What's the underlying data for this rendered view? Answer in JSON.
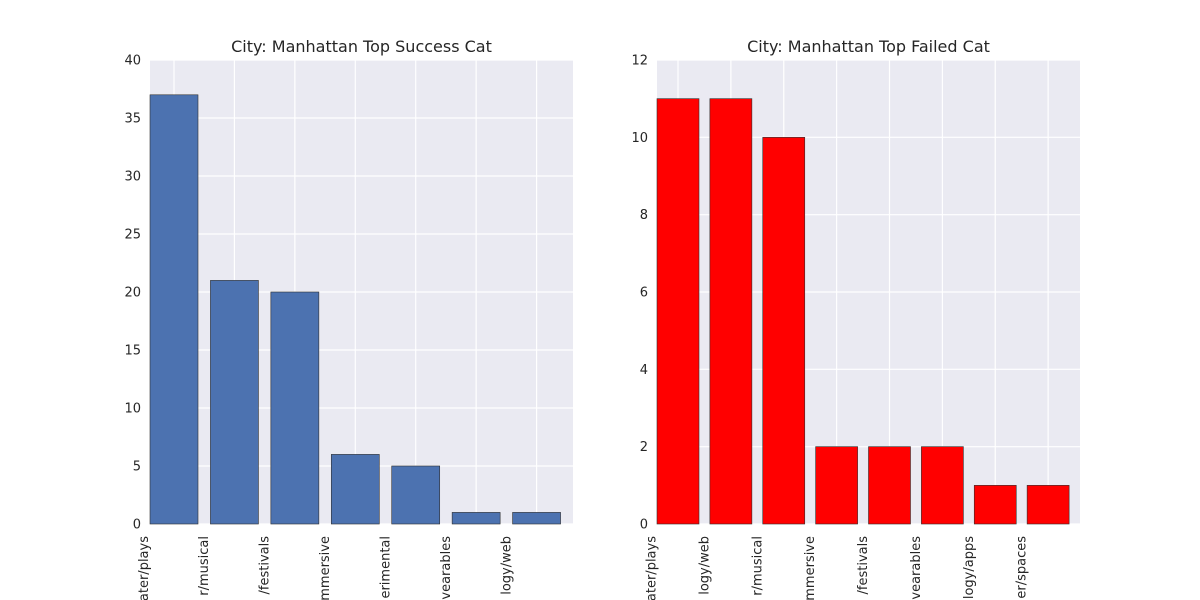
{
  "chart_data": [
    {
      "type": "bar",
      "title": "City: Manhattan Top Success Cat",
      "xlabel": "",
      "ylabel": "",
      "ylim": [
        0,
        40
      ],
      "yticks": [
        0,
        5,
        10,
        15,
        20,
        25,
        30,
        35,
        40
      ],
      "grid": true,
      "bar_color": "#4c72b0",
      "tick_labels": [
        "ater/plays",
        "r/musical",
        "/festivals",
        "mmersive",
        "erimental",
        "vearables",
        "logy/web"
      ],
      "values": [
        37,
        21,
        20,
        6,
        5,
        1,
        1
      ]
    },
    {
      "type": "bar",
      "title": "City: Manhattan Top Failed Cat",
      "xlabel": "",
      "ylabel": "",
      "ylim": [
        0,
        12
      ],
      "yticks": [
        0,
        2,
        4,
        6,
        8,
        10,
        12
      ],
      "grid": true,
      "bar_color": "#ff0000",
      "tick_labels": [
        "ater/plays",
        "logy/web",
        "r/musical",
        "mmersive",
        "/festivals",
        "vearables",
        "logy/apps",
        "er/spaces"
      ],
      "values": [
        11,
        11,
        10,
        2,
        2,
        2,
        1,
        1
      ]
    }
  ]
}
